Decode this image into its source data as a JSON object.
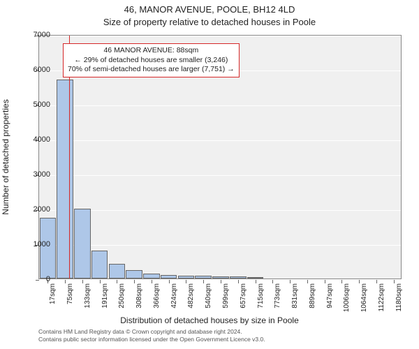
{
  "title": "46, MANOR AVENUE, POOLE, BH12 4LD",
  "subtitle": "Size of property relative to detached houses in Poole",
  "chart": {
    "type": "histogram",
    "plot_bg": "#f0f0f0",
    "grid_color": "#ffffff",
    "bar_fill": "#aec7e8",
    "bar_border": "#666666",
    "ref_line_color": "#d62728",
    "border_color": "#888888",
    "ylim": [
      0,
      7000
    ],
    "ytick_step": 1000,
    "yticks": [
      0,
      1000,
      2000,
      3000,
      4000,
      5000,
      6000,
      7000
    ],
    "ylabel": "Number of detached properties",
    "xlabel": "Distribution of detached houses by size in Poole",
    "x_categories": [
      "17sqm",
      "75sqm",
      "133sqm",
      "191sqm",
      "250sqm",
      "308sqm",
      "366sqm",
      "424sqm",
      "482sqm",
      "540sqm",
      "599sqm",
      "657sqm",
      "715sqm",
      "773sqm",
      "831sqm",
      "889sqm",
      "947sqm",
      "1006sqm",
      "1064sqm",
      "1122sqm",
      "1180sqm"
    ],
    "values": [
      1750,
      5700,
      2000,
      800,
      420,
      250,
      150,
      110,
      90,
      80,
      70,
      60,
      50,
      0,
      0,
      0,
      0,
      0,
      0,
      0,
      0
    ],
    "ref_line_x": 88,
    "ref_line_unit": "sqm",
    "x_range": [
      17,
      1180
    ]
  },
  "annotation": {
    "line1": "46 MANOR AVENUE: 88sqm",
    "line2": "← 29% of detached houses are smaller (3,246)",
    "line3": "70% of semi-detached houses are larger (7,751) →"
  },
  "footer": {
    "line1": "Contains HM Land Registry data © Crown copyright and database right 2024.",
    "line2": "Contains public sector information licensed under the Open Government Licence v3.0."
  }
}
